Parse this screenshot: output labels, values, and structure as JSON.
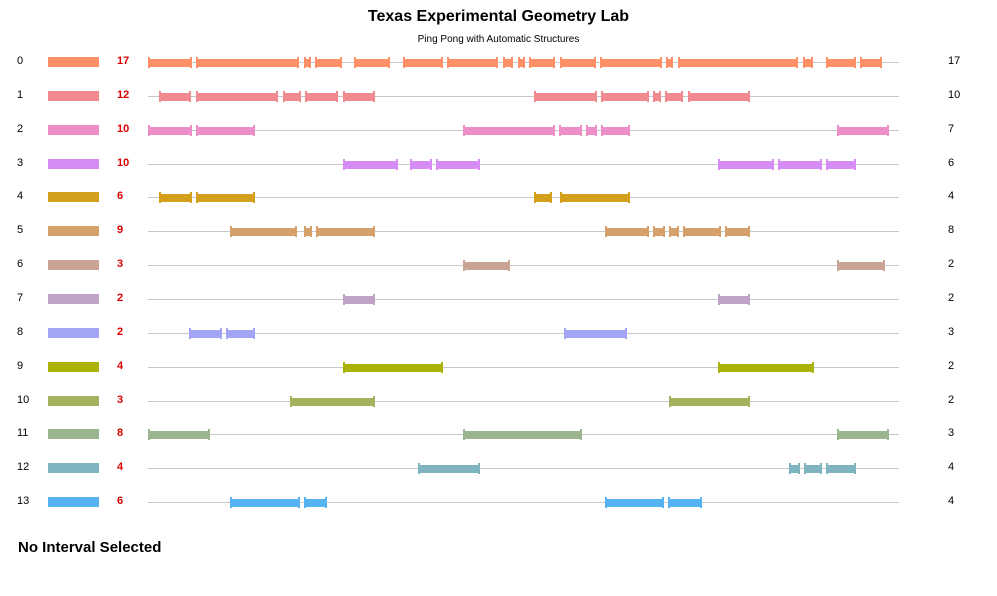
{
  "app": {
    "title": "Texas Experimental Geometry Lab",
    "subtitle": "Ping Pong with Automatic Structures"
  },
  "status_text": "No Interval Selected",
  "rows": [
    {
      "index": "0",
      "count": "17",
      "right": "17",
      "color": "#ff8f66",
      "segments": [
        [
          0,
          44
        ],
        [
          48,
          151
        ],
        [
          156,
          163
        ],
        [
          167,
          194
        ],
        [
          206,
          242
        ],
        [
          255,
          295
        ],
        [
          299,
          350
        ],
        [
          355,
          365
        ],
        [
          370,
          377
        ],
        [
          381,
          407
        ],
        [
          412,
          448
        ],
        [
          452,
          514
        ],
        [
          518,
          525
        ],
        [
          530,
          650
        ],
        [
          655,
          665
        ],
        [
          678,
          708
        ],
        [
          712,
          734
        ]
      ]
    },
    {
      "index": "1",
      "count": "12",
      "right": "10",
      "color": "#f08a90",
      "segments": [
        [
          11,
          43
        ],
        [
          48,
          130
        ],
        [
          135,
          153
        ],
        [
          157,
          190
        ],
        [
          195,
          227
        ],
        [
          386,
          449
        ],
        [
          453,
          501
        ],
        [
          505,
          513
        ],
        [
          517,
          535
        ],
        [
          540,
          602
        ]
      ]
    },
    {
      "index": "2",
      "count": "10",
      "right": "7",
      "color": "#ee8ec9",
      "segments": [
        [
          0,
          44
        ],
        [
          48,
          107
        ],
        [
          315,
          407
        ],
        [
          411,
          434
        ],
        [
          438,
          449
        ],
        [
          453,
          482
        ],
        [
          689,
          741
        ]
      ]
    },
    {
      "index": "3",
      "count": "10",
      "right": "6",
      "color": "#d58cf5",
      "segments": [
        [
          195,
          250
        ],
        [
          262,
          284
        ],
        [
          288,
          332
        ],
        [
          570,
          626
        ],
        [
          630,
          674
        ],
        [
          678,
          708
        ]
      ]
    },
    {
      "index": "4",
      "count": "6",
      "right": "4",
      "color": "#d4a01c",
      "segments": [
        [
          11,
          44
        ],
        [
          48,
          107
        ],
        [
          386,
          404
        ],
        [
          412,
          482
        ]
      ]
    },
    {
      "index": "5",
      "count": "9",
      "right": "8",
      "color": "#d6a06a",
      "segments": [
        [
          82,
          149
        ],
        [
          156,
          164
        ],
        [
          168,
          227
        ],
        [
          457,
          501
        ],
        [
          505,
          517
        ],
        [
          521,
          531
        ],
        [
          535,
          573
        ],
        [
          577,
          602
        ]
      ]
    },
    {
      "index": "6",
      "count": "3",
      "right": "2",
      "color": "#c9a396",
      "segments": [
        [
          315,
          362
        ],
        [
          689,
          737
        ]
      ]
    },
    {
      "index": "7",
      "count": "2",
      "right": "2",
      "color": "#bea3c6",
      "segments": [
        [
          195,
          227
        ],
        [
          570,
          602
        ]
      ]
    },
    {
      "index": "8",
      "count": "2",
      "right": "3",
      "color": "#a3a6f7",
      "segments": [
        [
          41,
          74
        ],
        [
          78,
          107
        ],
        [
          416,
          479
        ]
      ]
    },
    {
      "index": "9",
      "count": "4",
      "right": "2",
      "color": "#abb30b",
      "segments": [
        [
          195,
          295
        ],
        [
          570,
          666
        ]
      ]
    },
    {
      "index": "10",
      "count": "3",
      "right": "2",
      "color": "#a2b25e",
      "segments": [
        [
          142,
          227
        ],
        [
          521,
          602
        ]
      ]
    },
    {
      "index": "11",
      "count": "8",
      "right": "3",
      "color": "#9bb58e",
      "segments": [
        [
          0,
          62
        ],
        [
          315,
          434
        ],
        [
          689,
          741
        ]
      ]
    },
    {
      "index": "12",
      "count": "4",
      "right": "4",
      "color": "#7fb3c0",
      "segments": [
        [
          270,
          332
        ],
        [
          641,
          652
        ],
        [
          656,
          674
        ],
        [
          678,
          708
        ]
      ]
    },
    {
      "index": "13",
      "count": "6",
      "right": "4",
      "color": "#55b3f2",
      "segments": [
        [
          82,
          152
        ],
        [
          156,
          179
        ],
        [
          457,
          516
        ],
        [
          520,
          554
        ]
      ]
    }
  ]
}
